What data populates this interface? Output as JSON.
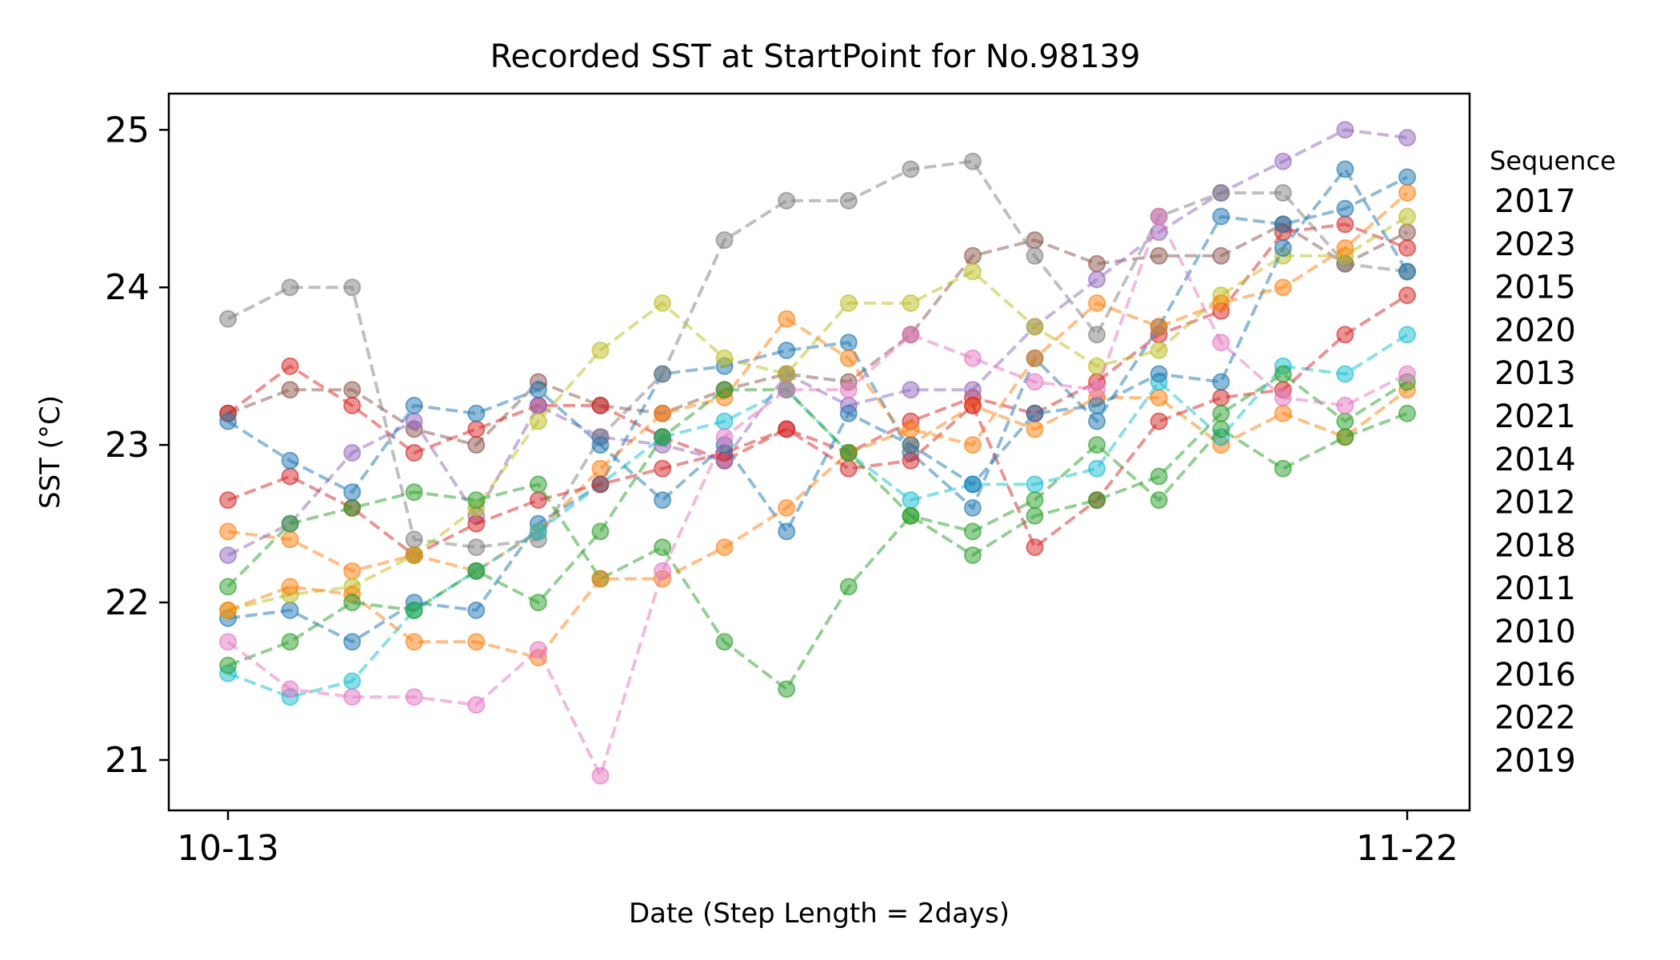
{
  "chart_data": {
    "type": "line",
    "title": "Recorded SST at StartPoint for No.98139",
    "xlabel": "Date (Step Length = 2days)",
    "ylabel": "SST (°C)",
    "x_tick_labels": [
      "10-13",
      "11-22"
    ],
    "y_ticks": [
      21,
      22,
      23,
      24,
      25
    ],
    "ylim": [
      20.68,
      25.23
    ],
    "grid": false,
    "legend_title": "Sequence",
    "legend_placement": "right",
    "colors": [
      "#1f77b4",
      "#ff7f0e",
      "#2ca02c",
      "#d62728",
      "#9467bd",
      "#8c564b",
      "#e377c2",
      "#7f7f7f",
      "#bcbd22",
      "#17becf"
    ],
    "series": [
      {
        "name": "2017",
        "color": "#8c564b",
        "values": [
          23.2,
          23.35,
          23.35,
          23.1,
          23.0,
          23.4,
          23.25,
          23.2,
          23.35,
          23.45,
          23.4,
          23.7,
          24.2,
          24.3,
          24.15,
          24.2,
          24.2,
          24.4,
          24.15,
          24.35
        ]
      },
      {
        "name": "2023",
        "color": "#d62728",
        "values": [
          23.2,
          23.5,
          23.25,
          22.95,
          23.1,
          23.25,
          23.25,
          23.05,
          22.9,
          23.1,
          22.95,
          23.15,
          23.3,
          23.2,
          23.4,
          23.7,
          23.85,
          24.35,
          24.4,
          24.25
        ]
      },
      {
        "name": "2015",
        "color": "#1f77b4",
        "values": [
          21.9,
          21.95,
          21.75,
          22.0,
          21.95,
          22.5,
          22.75,
          23.45,
          23.5,
          23.6,
          23.65,
          22.95,
          22.6,
          23.55,
          23.15,
          23.75,
          24.45,
          24.4,
          24.5,
          24.7
        ]
      },
      {
        "name": "2020",
        "color": "#ff7f0e",
        "values": [
          22.45,
          22.4,
          22.2,
          22.3,
          22.2,
          22.45,
          22.85,
          23.2,
          23.3,
          23.8,
          23.55,
          23.0,
          23.25,
          23.1,
          23.3,
          23.3,
          23.0,
          23.2,
          23.05,
          23.35
        ]
      },
      {
        "name": "2013",
        "color": "#9467bd",
        "values": [
          22.3,
          22.5,
          22.95,
          23.15,
          22.55,
          23.25,
          23.05,
          23.0,
          22.9,
          23.45,
          23.25,
          23.35,
          23.35,
          23.75,
          24.05,
          24.35,
          24.6,
          24.8,
          25.0,
          24.95
        ]
      },
      {
        "name": "2021",
        "color": "#7f7f7f",
        "values": [
          23.8,
          24.0,
          24.0,
          22.4,
          22.35,
          22.4,
          23.05,
          23.45,
          24.3,
          24.55,
          24.55,
          24.75,
          24.8,
          24.2,
          23.7,
          24.45,
          24.6,
          24.6,
          24.15,
          24.1
        ]
      },
      {
        "name": "2014",
        "color": "#17becf",
        "values": [
          21.55,
          21.4,
          21.5,
          21.95,
          22.2,
          22.45,
          22.75,
          23.05,
          23.15,
          23.35,
          22.95,
          22.65,
          22.75,
          22.75,
          22.85,
          23.4,
          23.05,
          23.5,
          23.45,
          23.7
        ]
      },
      {
        "name": "2012",
        "color": "#d62728",
        "values": [
          22.65,
          22.8,
          22.6,
          22.3,
          22.5,
          22.65,
          22.75,
          22.85,
          22.95,
          23.1,
          22.85,
          22.9,
          23.25,
          22.35,
          22.65,
          23.15,
          23.3,
          23.35,
          23.7,
          23.95
        ]
      },
      {
        "name": "2018",
        "color": "#bcbd22",
        "values": [
          21.95,
          22.05,
          22.1,
          22.3,
          22.6,
          23.15,
          23.6,
          23.9,
          23.55,
          23.45,
          23.9,
          23.9,
          24.1,
          23.75,
          23.5,
          23.6,
          23.95,
          24.2,
          24.2,
          24.45
        ]
      },
      {
        "name": "2011",
        "color": "#2ca02c",
        "values": [
          22.1,
          22.5,
          22.6,
          22.7,
          22.65,
          22.75,
          22.15,
          22.35,
          21.75,
          21.45,
          22.1,
          22.55,
          22.3,
          22.55,
          22.65,
          22.8,
          23.2,
          23.45,
          23.15,
          23.4
        ]
      },
      {
        "name": "2010",
        "color": "#1f77b4",
        "values": [
          23.15,
          22.9,
          22.7,
          23.25,
          23.2,
          23.35,
          23.0,
          22.65,
          23.0,
          22.45,
          23.2,
          23.0,
          22.75,
          23.2,
          23.25,
          23.45,
          23.4,
          24.25,
          24.75,
          24.1
        ]
      },
      {
        "name": "2016",
        "color": "#ff7f0e",
        "values": [
          21.95,
          22.1,
          22.05,
          21.75,
          21.75,
          21.65,
          22.15,
          22.15,
          22.35,
          22.6,
          22.95,
          23.1,
          23.0,
          23.55,
          23.9,
          23.75,
          23.9,
          24.0,
          24.25,
          24.6
        ]
      },
      {
        "name": "2022",
        "color": "#2ca02c",
        "values": [
          21.6,
          21.75,
          22.0,
          21.95,
          22.2,
          22.0,
          22.45,
          23.05,
          23.35,
          23.35,
          22.95,
          22.55,
          22.45,
          22.65,
          23.0,
          22.65,
          23.1,
          22.85,
          23.05,
          23.2
        ]
      },
      {
        "name": "2019",
        "color": "#e377c2",
        "values": [
          21.75,
          21.45,
          21.4,
          21.4,
          21.35,
          21.7,
          20.9,
          22.2,
          23.05,
          23.35,
          23.35,
          23.7,
          23.55,
          23.4,
          23.35,
          24.45,
          23.65,
          23.3,
          23.25,
          23.45
        ]
      }
    ]
  }
}
